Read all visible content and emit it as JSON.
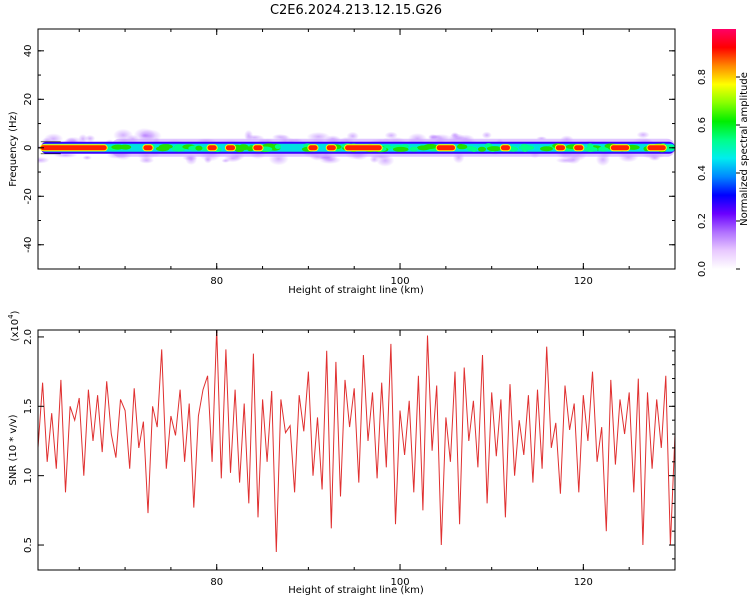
{
  "title": "C2E6.2024.213.12.15.G26",
  "chart_data": [
    {
      "type": "heatmap",
      "xlabel": "Height of straight line (km)",
      "ylabel": "Frequency (Hz)",
      "xlim": [
        60.5,
        130
      ],
      "ylim": [
        -50,
        49
      ],
      "x_ticks": [
        "80",
        "100",
        "120"
      ],
      "y_ticks": [
        "40",
        "20",
        "0",
        "-20",
        "-40"
      ],
      "colorbar": {
        "label": "Normalized spectral amplitude",
        "range": [
          0,
          1
        ],
        "ticks": [
          "0.0",
          "0.2",
          "0.4",
          "0.6",
          "0.8"
        ],
        "colors": [
          "#ffffff",
          "#e8c8ff",
          "#b070ff",
          "#6a00ff",
          "#0000ff",
          "#0088ff",
          "#00eeee",
          "#00ff88",
          "#00ee00",
          "#88ff00",
          "#ffff00",
          "#ff8800",
          "#ff0000",
          "#ff0066"
        ]
      },
      "band": {
        "center_frequency_hz": 0,
        "note": "energy concentrated near 0 Hz across all heights",
        "peak_segments_km": [
          [
            60.8,
            68
          ],
          [
            72,
            73
          ],
          [
            79,
            80
          ],
          [
            81,
            82
          ],
          [
            84,
            85
          ],
          [
            90,
            91
          ],
          [
            92,
            93
          ],
          [
            94,
            98
          ],
          [
            104,
            106
          ],
          [
            111,
            112
          ],
          [
            117,
            118
          ],
          [
            119,
            120
          ],
          [
            123,
            125
          ],
          [
            127,
            129
          ]
        ]
      }
    },
    {
      "type": "line",
      "xlabel": "Height of straight line (km)",
      "ylabel": "SNR (10 * v/v)",
      "multiplier_label": "(x10",
      "multiplier_exp": "4",
      "multiplier_close": ")",
      "xlim": [
        60.5,
        130
      ],
      "ylim": [
        0.32,
        2.05
      ],
      "x_ticks": [
        "80",
        "100",
        "120"
      ],
      "y_ticks": [
        "2.0",
        "1.5",
        "1.0",
        "0.5"
      ],
      "color": "#e03030",
      "series": [
        {
          "x": [
            60.5,
            61,
            61.5,
            62,
            62.5,
            63,
            63.5,
            64,
            64.5,
            65,
            65.5,
            66,
            66.5,
            67,
            67.5,
            68,
            68.5,
            69,
            69.5,
            70,
            70.5,
            71,
            71.5,
            72,
            72.5,
            73,
            73.5,
            74,
            74.5,
            75,
            75.5,
            76,
            76.5,
            77,
            77.5,
            78,
            78.5,
            79,
            79.5,
            80,
            80.5,
            81,
            81.5,
            82,
            82.5,
            83,
            83.5,
            84,
            84.5,
            85,
            85.5,
            86,
            86.5,
            87,
            87.5,
            88,
            88.5,
            89,
            89.5,
            90,
            90.5,
            91,
            91.5,
            92,
            92.5,
            93,
            93.5,
            94,
            94.5,
            95,
            95.5,
            96,
            96.5,
            97,
            97.5,
            98,
            98.5,
            99,
            99.5,
            100,
            100.5,
            101,
            101.5,
            102,
            102.5,
            103,
            103.5,
            104,
            104.5,
            105,
            105.5,
            106,
            106.5,
            107,
            107.5,
            108,
            108.5,
            109,
            109.5,
            110,
            110.5,
            111,
            111.5,
            112,
            112.5,
            113,
            113.5,
            114,
            114.5,
            115,
            115.5,
            116,
            116.5,
            117,
            117.5,
            118,
            118.5,
            119,
            119.5,
            120,
            120.5,
            121,
            121.5,
            122,
            122.5,
            123,
            123.5,
            124,
            124.5,
            125,
            125.5,
            126,
            126.5,
            127,
            127.5,
            128,
            128.5,
            129,
            129.5,
            130
          ],
          "values": [
            1.2,
            1.67,
            1.1,
            1.45,
            1.05,
            1.69,
            0.88,
            1.5,
            1.4,
            1.56,
            1.0,
            1.62,
            1.25,
            1.58,
            1.17,
            1.68,
            1.3,
            1.13,
            1.55,
            1.47,
            1.05,
            1.63,
            1.2,
            1.39,
            0.73,
            1.5,
            1.35,
            1.91,
            1.05,
            1.43,
            1.29,
            1.62,
            1.1,
            1.52,
            0.77,
            1.43,
            1.62,
            1.72,
            1.1,
            2.06,
            0.98,
            1.91,
            1.02,
            1.62,
            0.95,
            1.52,
            0.8,
            1.88,
            0.7,
            1.55,
            1.1,
            1.61,
            0.45,
            1.55,
            1.31,
            1.36,
            0.88,
            1.58,
            1.32,
            1.75,
            1.0,
            1.42,
            0.9,
            1.9,
            0.62,
            1.82,
            0.85,
            1.69,
            1.35,
            1.63,
            0.95,
            1.87,
            1.25,
            1.6,
            0.98,
            1.67,
            1.06,
            1.95,
            0.65,
            1.47,
            1.15,
            1.54,
            0.88,
            1.72,
            0.75,
            2.01,
            1.18,
            1.65,
            0.5,
            1.42,
            1.1,
            1.75,
            0.65,
            1.78,
            1.25,
            1.54,
            1.06,
            1.87,
            0.8,
            1.6,
            1.14,
            1.55,
            0.7,
            1.66,
            1.0,
            1.4,
            1.15,
            1.58,
            0.95,
            1.62,
            1.05,
            1.93,
            1.2,
            1.38,
            0.87,
            1.65,
            1.33,
            1.52,
            0.88,
            1.58,
            1.25,
            1.75,
            1.1,
            1.35,
            0.6,
            1.69,
            1.08,
            1.55,
            1.3,
            1.6,
            0.88,
            1.7,
            0.5,
            1.6,
            1.05,
            1.55,
            1.2,
            1.72,
            0.5,
            1.3
          ]
        }
      ]
    }
  ]
}
